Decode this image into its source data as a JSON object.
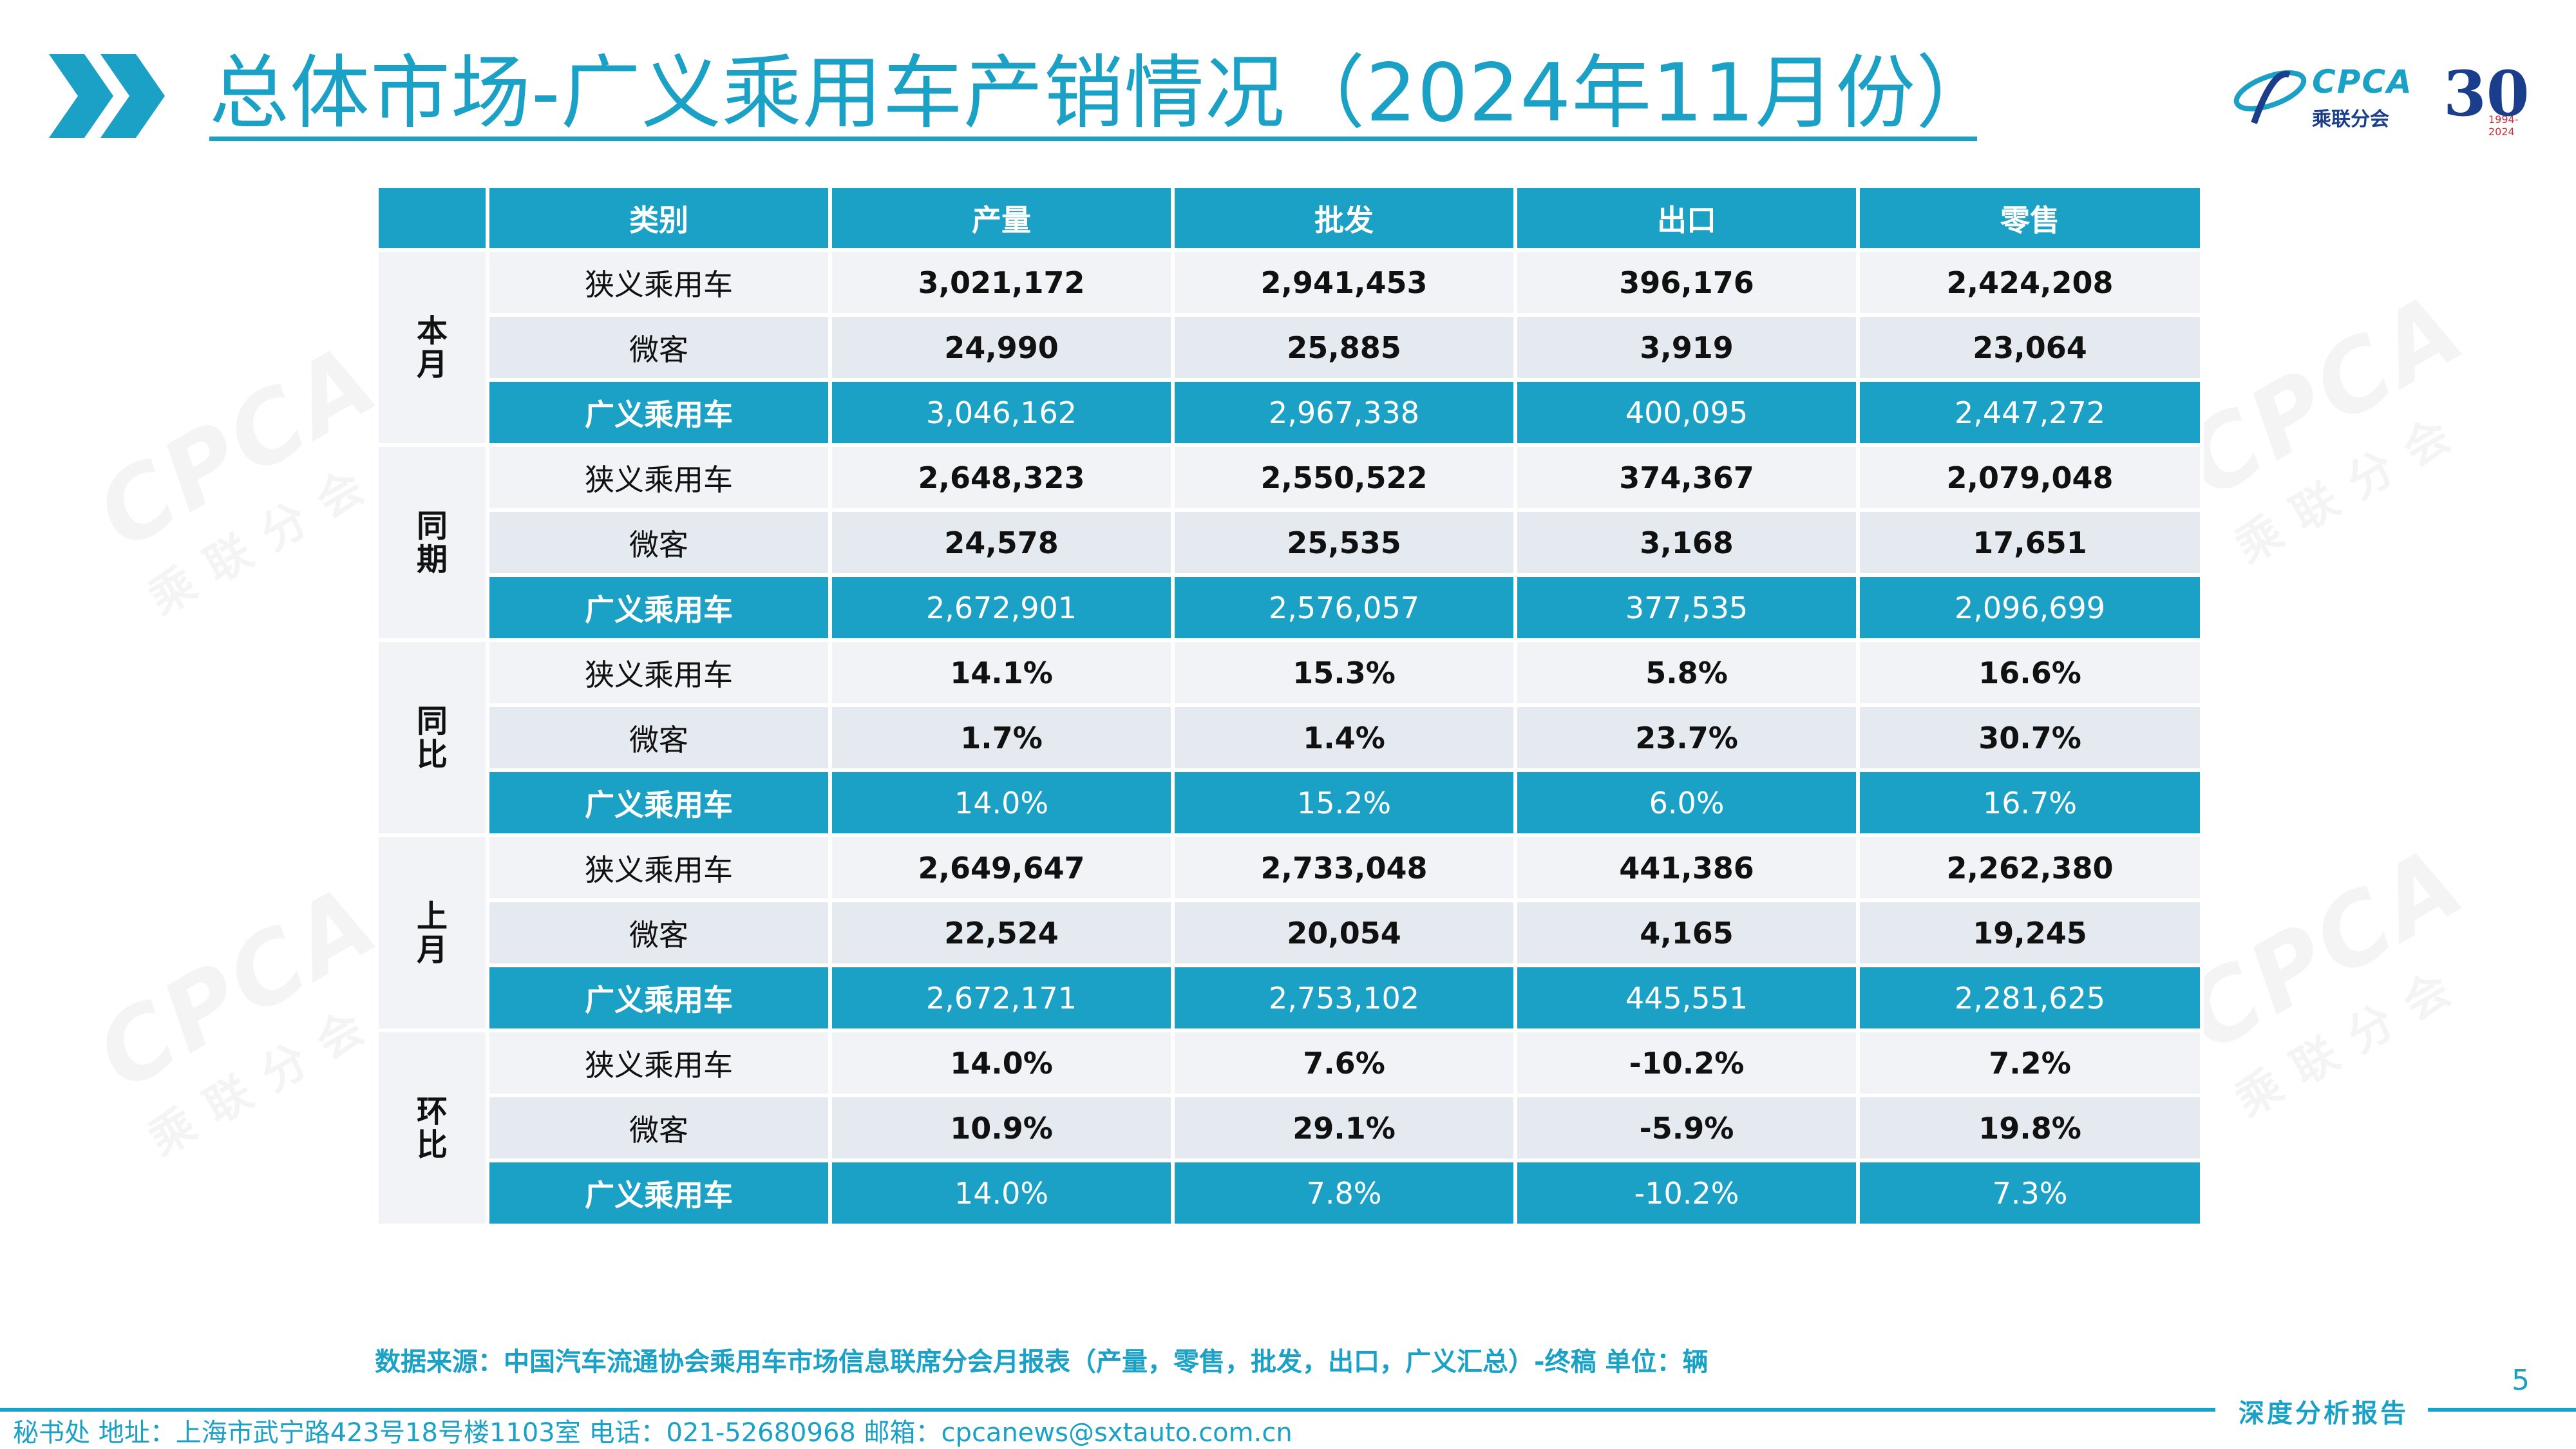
{
  "header": {
    "title": "总体市场-广义乘用车产销情况（2024年11月份）",
    "accent_color": "#1ba1c5"
  },
  "logo": {
    "brand": "CPCA",
    "brand_cn": "乘联分会",
    "anniversary": "30",
    "years": "1994-2024"
  },
  "watermark": {
    "text": "CPCA",
    "text_cn": "乘联分会"
  },
  "table": {
    "headers": [
      "类别",
      "产量",
      "批发",
      "出口",
      "零售"
    ],
    "groups": [
      {
        "name": "本月",
        "rows": [
          {
            "label": "狭义乘用车",
            "values": [
              "3,021,172",
              "2,941,453",
              "396,176",
              "2,424,208"
            ]
          },
          {
            "label": "微客",
            "values": [
              "24,990",
              "25,885",
              "3,919",
              "23,064"
            ]
          },
          {
            "label": "广义乘用车",
            "values": [
              "3,046,162",
              "2,967,338",
              "400,095",
              "2,447,272"
            ]
          }
        ]
      },
      {
        "name": "同期",
        "rows": [
          {
            "label": "狭义乘用车",
            "values": [
              "2,648,323",
              "2,550,522",
              "374,367",
              "2,079,048"
            ]
          },
          {
            "label": "微客",
            "values": [
              "24,578",
              "25,535",
              "3,168",
              "17,651"
            ]
          },
          {
            "label": "广义乘用车",
            "values": [
              "2,672,901",
              "2,576,057",
              "377,535",
              "2,096,699"
            ]
          }
        ]
      },
      {
        "name": "同比",
        "rows": [
          {
            "label": "狭义乘用车",
            "values": [
              "14.1%",
              "15.3%",
              "5.8%",
              "16.6%"
            ]
          },
          {
            "label": "微客",
            "values": [
              "1.7%",
              "1.4%",
              "23.7%",
              "30.7%"
            ]
          },
          {
            "label": "广义乘用车",
            "values": [
              "14.0%",
              "15.2%",
              "6.0%",
              "16.7%"
            ]
          }
        ]
      },
      {
        "name": "上月",
        "rows": [
          {
            "label": "狭义乘用车",
            "values": [
              "2,649,647",
              "2,733,048",
              "441,386",
              "2,262,380"
            ]
          },
          {
            "label": "微客",
            "values": [
              "22,524",
              "20,054",
              "4,165",
              "19,245"
            ]
          },
          {
            "label": "广义乘用车",
            "values": [
              "2,672,171",
              "2,753,102",
              "445,551",
              "2,281,625"
            ]
          }
        ]
      },
      {
        "name": "环比",
        "rows": [
          {
            "label": "狭义乘用车",
            "values": [
              "14.0%",
              "7.6%",
              "-10.2%",
              "7.2%"
            ]
          },
          {
            "label": "微客",
            "values": [
              "10.9%",
              "29.1%",
              "-5.9%",
              "19.8%"
            ]
          },
          {
            "label": "广义乘用车",
            "values": [
              "14.0%",
              "7.8%",
              "-10.2%",
              "7.3%"
            ]
          }
        ]
      }
    ]
  },
  "source_note": "数据来源：中国汽车流通协会乘用车市场信息联席分会月报表（产量，零售，批发，出口，广义汇总）-终稿    单位：辆",
  "footer": {
    "address": "秘书处   地址：上海市武宁路423号18号楼1103室  电话：021-52680968   邮箱：cpcanews@sxtauto.com.cn",
    "report_label": "深度分析报告",
    "page_number": "5"
  }
}
